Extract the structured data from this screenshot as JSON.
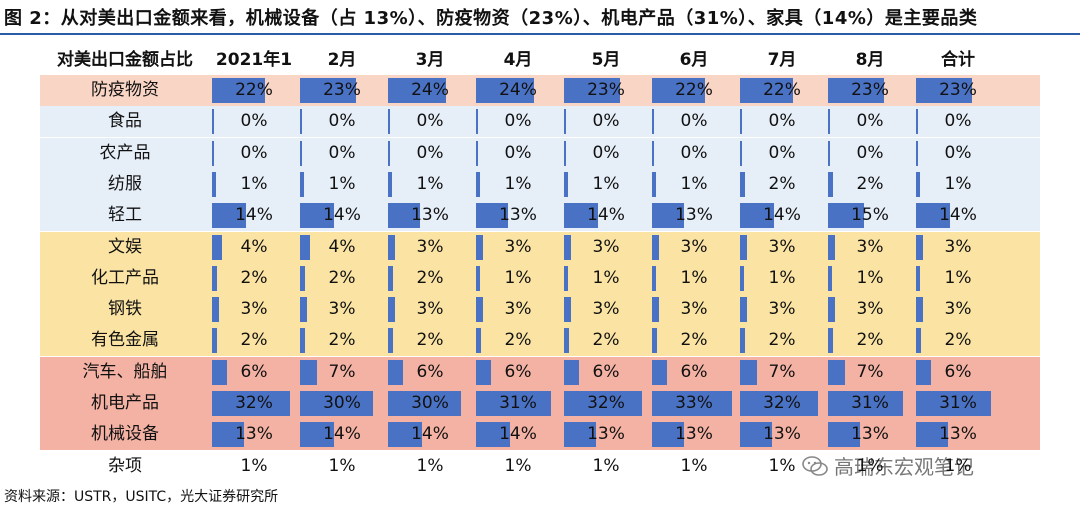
{
  "title": "图 2：从对美出口金额来看，机械设备（占 13%）、防疫物资（23%）、机电产品（31%）、家具（14%）是主要品类",
  "colors": {
    "bar": "#4a72c4",
    "group_epidemic": "#f9d5c5",
    "group_light": "#e6eef8",
    "group_yellow": "#fbe4a3",
    "group_pink": "#f4b2a4",
    "title_rule": "#2b5aa6"
  },
  "chart_data": {
    "type": "table",
    "title": "图 2：从对美出口金额来看，机械设备（占 13%）、防疫物资（23%）、机电产品（31%）、家具（14%）是主要品类",
    "corner_label": "对美出口金额占比",
    "columns": [
      "2021年1月",
      "2月",
      "3月",
      "4月",
      "5月",
      "6月",
      "7月",
      "8月",
      "合计"
    ],
    "rows": [
      {
        "name": "防疫物资",
        "group": "group_epidemic",
        "values": [
          22,
          23,
          24,
          24,
          23,
          22,
          22,
          23,
          23
        ]
      },
      {
        "name": "食品",
        "group": "group_light",
        "values": [
          0,
          0,
          0,
          0,
          0,
          0,
          0,
          0,
          0
        ]
      },
      {
        "name": "农产品",
        "group": "group_light",
        "values": [
          0,
          0,
          0,
          0,
          0,
          0,
          0,
          0,
          0
        ]
      },
      {
        "name": "纺服",
        "group": "group_light",
        "values": [
          1,
          1,
          1,
          1,
          1,
          1,
          2,
          2,
          1
        ]
      },
      {
        "name": "轻工",
        "group": "group_light",
        "values": [
          14,
          14,
          13,
          13,
          14,
          13,
          14,
          15,
          14
        ]
      },
      {
        "name": "文娱",
        "group": "group_yellow",
        "values": [
          4,
          4,
          3,
          3,
          3,
          3,
          3,
          3,
          3
        ]
      },
      {
        "name": "化工产品",
        "group": "group_yellow",
        "values": [
          2,
          2,
          2,
          1,
          1,
          1,
          1,
          1,
          1
        ]
      },
      {
        "name": "钢铁",
        "group": "group_yellow",
        "values": [
          3,
          3,
          3,
          3,
          3,
          3,
          3,
          3,
          3
        ]
      },
      {
        "name": "有色金属",
        "group": "group_yellow",
        "values": [
          2,
          2,
          2,
          2,
          2,
          2,
          2,
          2,
          2
        ]
      },
      {
        "name": "汽车、船舶",
        "group": "group_pink",
        "values": [
          6,
          7,
          6,
          6,
          6,
          6,
          7,
          7,
          6
        ]
      },
      {
        "name": "机电产品",
        "group": "group_pink",
        "values": [
          32,
          30,
          30,
          31,
          32,
          33,
          32,
          31,
          31
        ]
      },
      {
        "name": "机械设备",
        "group": "group_pink",
        "values": [
          13,
          14,
          14,
          14,
          13,
          13,
          13,
          13,
          13
        ]
      },
      {
        "name": "杂项",
        "group": "none",
        "values": [
          1,
          1,
          1,
          1,
          1,
          1,
          1,
          1,
          1
        ]
      }
    ],
    "value_suffix": "%",
    "bar_max": 33
  },
  "footer": "资料来源：USTR，USITC，光大证券研究所",
  "watermark": "高瑞东宏观笔记"
}
